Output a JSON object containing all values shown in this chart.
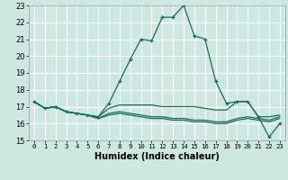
{
  "xlabel": "Humidex (Indice chaleur)",
  "bg_color": "#cce8e0",
  "grid_color": "#ffffff",
  "line_color": "#1a6b5a",
  "xlim": [
    -0.5,
    23.5
  ],
  "ylim": [
    15,
    23
  ],
  "yticks": [
    15,
    16,
    17,
    18,
    19,
    20,
    21,
    22,
    23
  ],
  "xticks": [
    0,
    1,
    2,
    3,
    4,
    5,
    6,
    7,
    8,
    9,
    10,
    11,
    12,
    13,
    14,
    15,
    16,
    17,
    18,
    19,
    20,
    21,
    22,
    23
  ],
  "curves": [
    {
      "x": [
        0,
        1,
        2,
        3,
        4,
        5,
        6,
        7,
        8,
        9,
        10,
        11,
        12,
        13,
        14,
        15,
        16,
        17,
        18,
        19,
        20,
        21,
        22,
        23
      ],
      "y": [
        17.3,
        16.9,
        17.0,
        16.7,
        16.6,
        16.5,
        16.4,
        17.2,
        18.5,
        19.8,
        21.0,
        20.9,
        22.3,
        22.3,
        23.0,
        21.2,
        21.0,
        18.5,
        17.2,
        17.3,
        17.3,
        16.4,
        15.2,
        16.0
      ],
      "marker": true
    },
    {
      "x": [
        0,
        1,
        2,
        3,
        4,
        5,
        6,
        7,
        8,
        9,
        10,
        11,
        12,
        13,
        14,
        15,
        16,
        17,
        18,
        19,
        20,
        21,
        22,
        23
      ],
      "y": [
        17.3,
        16.9,
        17.0,
        16.7,
        16.6,
        16.5,
        16.4,
        16.9,
        17.1,
        17.1,
        17.1,
        17.1,
        17.0,
        17.0,
        17.0,
        17.0,
        16.9,
        16.8,
        16.8,
        17.3,
        17.3,
        16.4,
        16.4,
        16.5
      ],
      "marker": false
    },
    {
      "x": [
        0,
        1,
        2,
        3,
        4,
        5,
        6,
        7,
        8,
        9,
        10,
        11,
        12,
        13,
        14,
        15,
        16,
        17,
        18,
        19,
        20,
        21,
        22,
        23
      ],
      "y": [
        17.3,
        16.9,
        17.0,
        16.7,
        16.6,
        16.5,
        16.3,
        16.6,
        16.7,
        16.6,
        16.5,
        16.4,
        16.4,
        16.3,
        16.3,
        16.2,
        16.2,
        16.1,
        16.1,
        16.3,
        16.4,
        16.3,
        16.2,
        16.4
      ],
      "marker": false
    },
    {
      "x": [
        0,
        1,
        2,
        3,
        4,
        5,
        6,
        7,
        8,
        9,
        10,
        11,
        12,
        13,
        14,
        15,
        16,
        17,
        18,
        19,
        20,
        21,
        22,
        23
      ],
      "y": [
        17.3,
        16.9,
        17.0,
        16.7,
        16.6,
        16.5,
        16.3,
        16.5,
        16.6,
        16.5,
        16.4,
        16.3,
        16.3,
        16.2,
        16.2,
        16.1,
        16.1,
        16.0,
        16.0,
        16.2,
        16.3,
        16.2,
        16.1,
        16.3
      ],
      "marker": false
    }
  ]
}
